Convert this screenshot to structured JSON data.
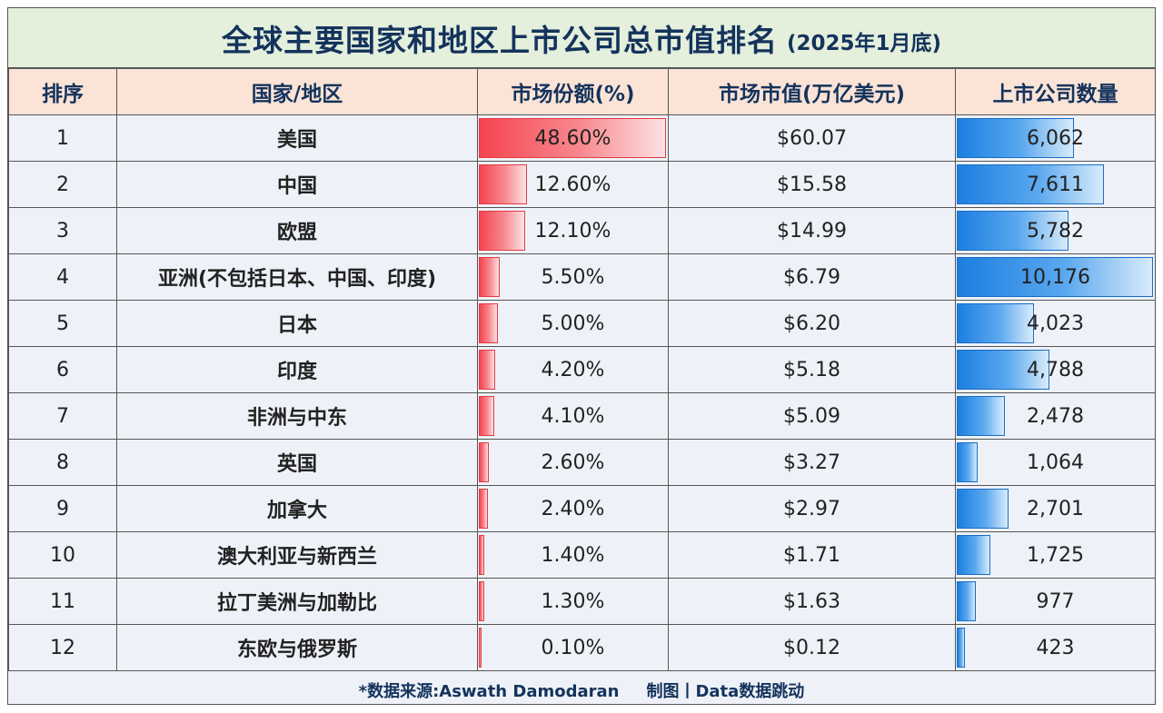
{
  "title": {
    "main": "全球主要国家和地区上市公司总市值排名",
    "sub": "(2025年1月底)"
  },
  "headers": {
    "rank": "排序",
    "region": "国家/地区",
    "share": "市场份额(%)",
    "cap": "市场市值(万亿美元)",
    "count": "上市公司数量"
  },
  "colors": {
    "share_bar": "#f5444f",
    "count_bar": "#1b7ee0",
    "title_bg": "#e4efdc",
    "header_bg": "#fbe3d6",
    "text_dark": "#14335c"
  },
  "chart_data": {
    "type": "table",
    "columns": [
      "排序",
      "国家/地区",
      "市场份额(%)",
      "市场市值(万亿美元)",
      "上市公司数量"
    ],
    "rows": [
      {
        "rank": "1",
        "region": "美国",
        "share": "48.60%",
        "share_value": 48.6,
        "cap": "$60.07",
        "count": "6,062",
        "count_value": 6062
      },
      {
        "rank": "2",
        "region": "中国",
        "share": "12.60%",
        "share_value": 12.6,
        "cap": "$15.58",
        "count": "7,611",
        "count_value": 7611
      },
      {
        "rank": "3",
        "region": "欧盟",
        "share": "12.10%",
        "share_value": 12.1,
        "cap": "$14.99",
        "count": "5,782",
        "count_value": 5782
      },
      {
        "rank": "4",
        "region": "亚洲(不包括日本、中国、印度)",
        "share": "5.50%",
        "share_value": 5.5,
        "cap": "$6.79",
        "count": "10,176",
        "count_value": 10176
      },
      {
        "rank": "5",
        "region": "日本",
        "share": "5.00%",
        "share_value": 5.0,
        "cap": "$6.20",
        "count": "4,023",
        "count_value": 4023
      },
      {
        "rank": "6",
        "region": "印度",
        "share": "4.20%",
        "share_value": 4.2,
        "cap": "$5.18",
        "count": "4,788",
        "count_value": 4788
      },
      {
        "rank": "7",
        "region": "非洲与中东",
        "share": "4.10%",
        "share_value": 4.1,
        "cap": "$5.09",
        "count": "2,478",
        "count_value": 2478
      },
      {
        "rank": "8",
        "region": "英国",
        "share": "2.60%",
        "share_value": 2.6,
        "cap": "$3.27",
        "count": "1,064",
        "count_value": 1064
      },
      {
        "rank": "9",
        "region": "加拿大",
        "share": "2.40%",
        "share_value": 2.4,
        "cap": "$2.97",
        "count": "2,701",
        "count_value": 2701
      },
      {
        "rank": "10",
        "region": "澳大利亚与新西兰",
        "share": "1.40%",
        "share_value": 1.4,
        "cap": "$1.71",
        "count": "1,725",
        "count_value": 1725
      },
      {
        "rank": "11",
        "region": "拉丁美洲与加勒比",
        "share": "1.30%",
        "share_value": 1.3,
        "cap": "$1.63",
        "count": "977",
        "count_value": 977
      },
      {
        "rank": "12",
        "region": "东欧与俄罗斯",
        "share": "0.10%",
        "share_value": 0.1,
        "cap": "$0.12",
        "count": "423",
        "count_value": 423
      }
    ]
  },
  "footer": {
    "source": "*数据来源:Aswath Damodaran",
    "credit": "制图丨Data数据跳动"
  }
}
